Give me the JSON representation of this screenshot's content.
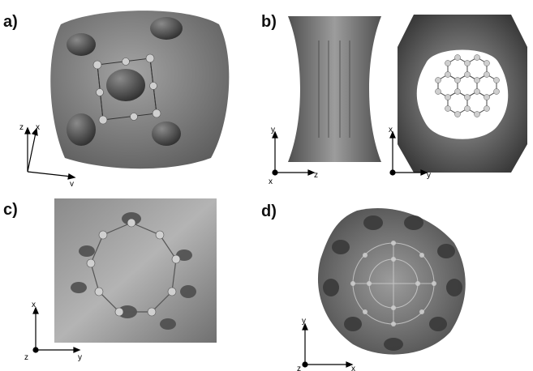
{
  "panels": [
    {
      "label": "a)",
      "axes": [
        "z",
        "x",
        "y"
      ]
    },
    {
      "label": "b)",
      "axes_left": [
        "y",
        "x",
        "z"
      ],
      "axes_right": [
        "x",
        "y"
      ]
    },
    {
      "label": "c)",
      "axes": [
        "x",
        "z",
        "y"
      ]
    },
    {
      "label": "d)",
      "axes": [
        "y",
        "z",
        "x"
      ]
    }
  ],
  "colors": {
    "background": "#ffffff",
    "surface": "#6f6f6f",
    "atom": "#c8c8c8"
  }
}
